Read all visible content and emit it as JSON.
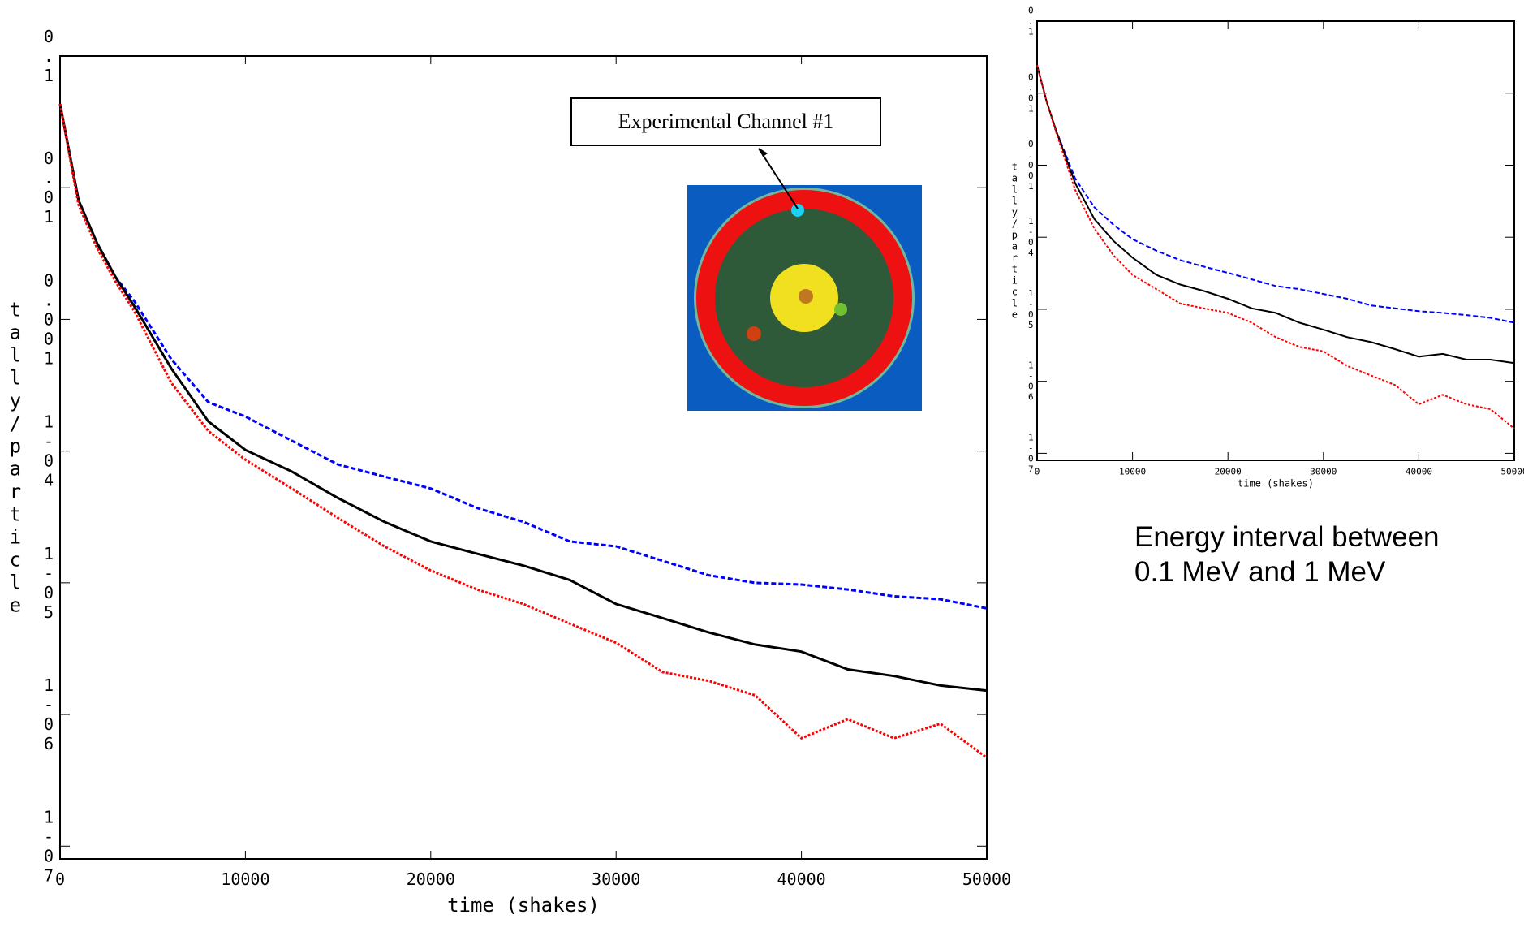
{
  "chart_data": [
    {
      "type": "line",
      "x_label": "time (shakes)",
      "y_label": "tally/particle",
      "yscale": "log",
      "annotation": "Experimental Channel #1",
      "x": [
        0,
        1000,
        2000,
        3000,
        4000,
        6000,
        8000,
        10000,
        12500,
        15000,
        17500,
        20000,
        22500,
        25000,
        27500,
        30000,
        32500,
        35000,
        37500,
        40000,
        42500,
        45000,
        47500,
        50000
      ],
      "xlim": [
        0,
        50000
      ],
      "xticks": [
        0,
        10000,
        20000,
        30000,
        40000,
        50000
      ],
      "ylim": [
        8e-08,
        0.1
      ],
      "yticks": [
        {
          "value": 0.1,
          "label": "0.1"
        },
        {
          "value": 0.01,
          "label": "0.01"
        },
        {
          "value": 0.001,
          "label": "0.001"
        },
        {
          "value": 0.0001,
          "label": "1-04"
        },
        {
          "value": 1e-05,
          "label": "1-05"
        },
        {
          "value": 1e-06,
          "label": "1-06"
        },
        {
          "value": 1e-07,
          "label": "1-07"
        }
      ],
      "series": [
        {
          "color": "#0000ff",
          "style": "dashed",
          "values": [
            0.0432,
            0.00804,
            0.00378,
            0.00209,
            0.00138,
            0.0005,
            0.000235,
            0.000183,
            0.00012,
            7.9e-05,
            6.4e-05,
            5.2e-05,
            3.7e-05,
            2.9e-05,
            2.06e-05,
            1.89e-05,
            1.47e-05,
            1.14e-05,
            1e-05,
            9.7e-06,
            8.9e-06,
            7.9e-06,
            7.5e-06,
            6.4e-06
          ]
        },
        {
          "color": "#000000",
          "style": "solid",
          "values": [
            0.0432,
            0.00804,
            0.00378,
            0.00209,
            0.00126,
            0.000425,
            0.000168,
            0.000102,
            7e-05,
            4.4e-05,
            2.9e-05,
            2.06e-05,
            1.66e-05,
            1.35e-05,
            1.05e-05,
            6.9e-06,
            5.4e-06,
            4.2e-06,
            3.4e-06,
            3e-06,
            2.2e-06,
            1.96e-06,
            1.66e-06,
            1.52e-06
          ]
        },
        {
          "color": "#ff0000",
          "style": "dotted",
          "values": [
            0.0432,
            0.0074,
            0.00347,
            0.00193,
            0.00116,
            0.00033,
            0.000142,
            8.6e-05,
            5.2e-05,
            3.1e-05,
            1.89e-05,
            1.24e-05,
            8.9e-06,
            6.9e-06,
            4.9e-06,
            3.5e-06,
            2.1e-06,
            1.8e-06,
            1.4e-06,
            6.6e-07,
            9.2e-07,
            6.6e-07,
            8.5e-07,
            4.7e-07
          ]
        }
      ]
    },
    {
      "type": "line",
      "x_label": "time (shakes)",
      "y_label": "tally/particle",
      "yscale": "log",
      "note": "Energy interval between 0.1 MeV and 1 MeV",
      "x": [
        0,
        1000,
        2000,
        3000,
        4000,
        6000,
        8000,
        10000,
        12500,
        15000,
        17500,
        20000,
        22500,
        25000,
        27500,
        30000,
        32500,
        35000,
        37500,
        40000,
        42500,
        45000,
        47500,
        50000
      ],
      "xlim": [
        0,
        50000
      ],
      "xticks": [
        0,
        10000,
        20000,
        30000,
        40000,
        50000
      ],
      "ylim": [
        8e-08,
        0.1
      ],
      "yticks": [
        {
          "value": 0.1,
          "label": "0.1"
        },
        {
          "value": 0.01,
          "label": "0.01"
        },
        {
          "value": 0.001,
          "label": "0.001"
        },
        {
          "value": 0.0001,
          "label": "1-04"
        },
        {
          "value": 1e-05,
          "label": "1-05"
        },
        {
          "value": 1e-06,
          "label": "1-06"
        },
        {
          "value": 1e-07,
          "label": "1-07"
        }
      ],
      "series": [
        {
          "color": "#0000ff",
          "style": "dashed",
          "values": [
            0.0244,
            0.0076,
            0.003,
            0.0014,
            0.00065,
            0.00026,
            0.000149,
            9.4e-05,
            6.5e-05,
            4.8e-05,
            3.9e-05,
            3.2e-05,
            2.6e-05,
            2.1e-05,
            1.9e-05,
            1.63e-05,
            1.4e-05,
            1.13e-05,
            1.03e-05,
            9.4e-06,
            8.9e-06,
            8.3e-06,
            7.6e-06,
            6.5e-06
          ]
        },
        {
          "color": "#000000",
          "style": "solid",
          "values": [
            0.0244,
            0.0076,
            0.003,
            0.00128,
            0.00056,
            0.000179,
            8.9e-05,
            5.2e-05,
            3e-05,
            2.2e-05,
            1.79e-05,
            1.4e-05,
            1.03e-05,
            8.9e-06,
            6.5e-06,
            5.2e-06,
            4.1e-06,
            3.5e-06,
            2.8e-06,
            2.2e-06,
            2.4e-06,
            2e-06,
            2e-06,
            1.79e-06
          ]
        },
        {
          "color": "#ff0000",
          "style": "dotted",
          "values": [
            0.0244,
            0.0076,
            0.00284,
            0.00113,
            0.00045,
            0.000132,
            5.6e-05,
            3e-05,
            1.9e-05,
            1.2e-05,
            1.03e-05,
            8.9e-06,
            6.5e-06,
            4.1e-06,
            3e-06,
            2.6e-06,
            1.63e-06,
            1.2e-06,
            8.9e-07,
            4.8e-07,
            6.5e-07,
            4.8e-07,
            4.1e-07,
            2.2e-07
          ]
        }
      ]
    }
  ]
}
